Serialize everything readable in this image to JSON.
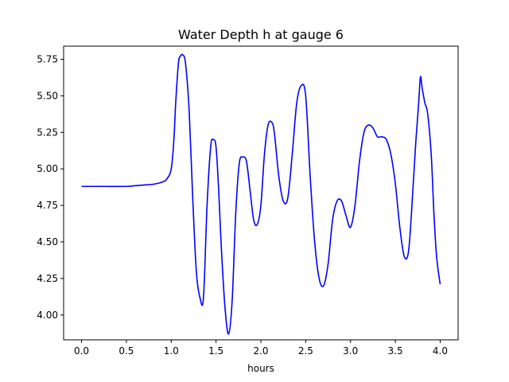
{
  "chart_data": {
    "type": "line",
    "title": "Water Depth h at gauge 6",
    "xlabel": "hours",
    "ylabel": "",
    "xlim": [
      -0.2,
      4.2
    ],
    "ylim": [
      3.83,
      5.84
    ],
    "xticks": [
      "0.0",
      "0.5",
      "1.0",
      "1.5",
      "2.0",
      "2.5",
      "3.0",
      "3.5",
      "4.0"
    ],
    "yticks": [
      "4.00",
      "4.25",
      "4.50",
      "4.75",
      "5.00",
      "5.25",
      "5.50",
      "5.75"
    ],
    "grid": false,
    "series": [
      {
        "color": "#0000ff",
        "x": [
          0.0,
          0.25,
          0.5,
          0.6,
          0.7,
          0.8,
          0.9,
          0.95,
          1.0,
          1.03,
          1.05,
          1.08,
          1.1,
          1.13,
          1.16,
          1.2,
          1.24,
          1.28,
          1.32,
          1.36,
          1.4,
          1.44,
          1.47,
          1.5,
          1.53,
          1.56,
          1.6,
          1.64,
          1.68,
          1.72,
          1.76,
          1.8,
          1.84,
          1.88,
          1.92,
          1.96,
          2.0,
          2.04,
          2.08,
          2.12,
          2.15,
          2.2,
          2.25,
          2.3,
          2.35,
          2.4,
          2.45,
          2.5,
          2.55,
          2.6,
          2.65,
          2.7,
          2.75,
          2.8,
          2.85,
          2.9,
          2.95,
          3.0,
          3.05,
          3.1,
          3.15,
          3.2,
          3.25,
          3.3,
          3.35,
          3.4,
          3.45,
          3.5,
          3.55,
          3.6,
          3.65,
          3.7,
          3.73,
          3.76,
          3.78,
          3.8,
          3.83,
          3.86,
          3.9,
          3.93,
          3.96,
          4.0
        ],
        "y": [
          4.88,
          4.88,
          4.88,
          4.885,
          4.89,
          4.895,
          4.91,
          4.93,
          5.0,
          5.2,
          5.45,
          5.72,
          5.77,
          5.78,
          5.72,
          5.4,
          4.8,
          4.3,
          4.12,
          4.12,
          4.75,
          5.15,
          5.2,
          5.15,
          4.85,
          4.45,
          4.05,
          3.87,
          4.1,
          4.7,
          5.04,
          5.08,
          5.05,
          4.85,
          4.65,
          4.62,
          4.75,
          5.1,
          5.3,
          5.32,
          5.25,
          4.95,
          4.78,
          4.8,
          5.1,
          5.45,
          5.57,
          5.5,
          4.95,
          4.5,
          4.25,
          4.2,
          4.35,
          4.65,
          4.78,
          4.78,
          4.68,
          4.6,
          4.75,
          5.05,
          5.25,
          5.3,
          5.28,
          5.22,
          5.22,
          5.2,
          5.1,
          4.9,
          4.6,
          4.4,
          4.45,
          4.9,
          5.2,
          5.45,
          5.63,
          5.55,
          5.45,
          5.38,
          5.1,
          4.7,
          4.4,
          4.21
        ]
      }
    ]
  }
}
